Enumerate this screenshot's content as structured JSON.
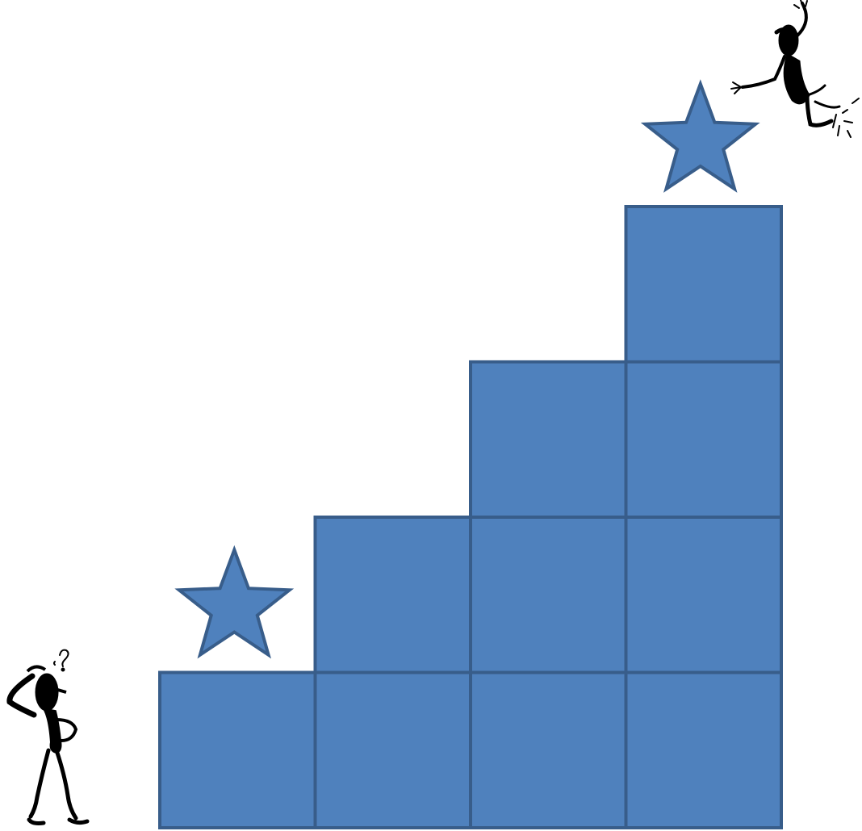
{
  "diagram": {
    "kind": "staircase",
    "colors": {
      "block_fill": "#4f81bd",
      "block_stroke": "#385d8a",
      "star_fill": "#4f81bd",
      "star_stroke": "#385d8a",
      "figure": "#000000",
      "background": "#ffffff"
    },
    "steps": [
      {
        "column": 1,
        "blocks": 1
      },
      {
        "column": 2,
        "blocks": 2
      },
      {
        "column": 3,
        "blocks": 3
      },
      {
        "column": 4,
        "blocks": 4
      }
    ],
    "stars": [
      {
        "name": "star-bottom",
        "on_column": 1
      },
      {
        "name": "star-top",
        "on_column": 4
      }
    ],
    "figures": [
      {
        "name": "thinking-figure-icon",
        "pose": "puzzled",
        "icon": "question-mark",
        "placement": "bottom-left"
      },
      {
        "name": "jumping-figure-icon",
        "pose": "celebrating",
        "placement": "top-right"
      }
    ]
  }
}
